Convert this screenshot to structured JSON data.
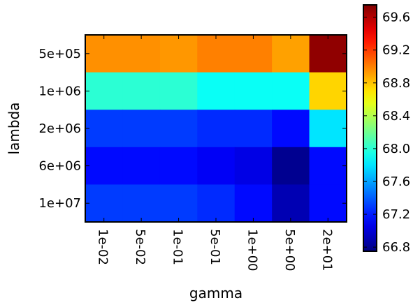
{
  "chart_data": {
    "type": "heatmap",
    "title": "",
    "xlabel": "gamma",
    "ylabel": "lambda",
    "x_categories": [
      "1e-02",
      "5e-02",
      "1e-01",
      "5e-01",
      "1e+00",
      "5e+00",
      "2e+01"
    ],
    "y_categories": [
      "5e+05",
      "1e+06",
      "2e+06",
      "6e+06",
      "1e+07"
    ],
    "values": [
      [
        68.95,
        68.95,
        68.93,
        69.0,
        69.0,
        68.9,
        69.7
      ],
      [
        68.0,
        68.0,
        68.0,
        67.9,
        67.9,
        67.9,
        68.75
      ],
      [
        67.3,
        67.3,
        67.3,
        67.25,
        67.25,
        67.15,
        67.8
      ],
      [
        67.15,
        67.15,
        67.15,
        67.1,
        67.05,
        66.8,
        67.15
      ],
      [
        67.3,
        67.3,
        67.3,
        67.25,
        67.15,
        66.9,
        67.15
      ]
    ],
    "colorbar": {
      "colormap": "jet",
      "vmin": 66.75,
      "vmax": 69.75,
      "ticks": [
        "66.8",
        "67.2",
        "67.6",
        "68.0",
        "68.4",
        "68.8",
        "69.2",
        "69.6"
      ]
    },
    "grid": false
  }
}
